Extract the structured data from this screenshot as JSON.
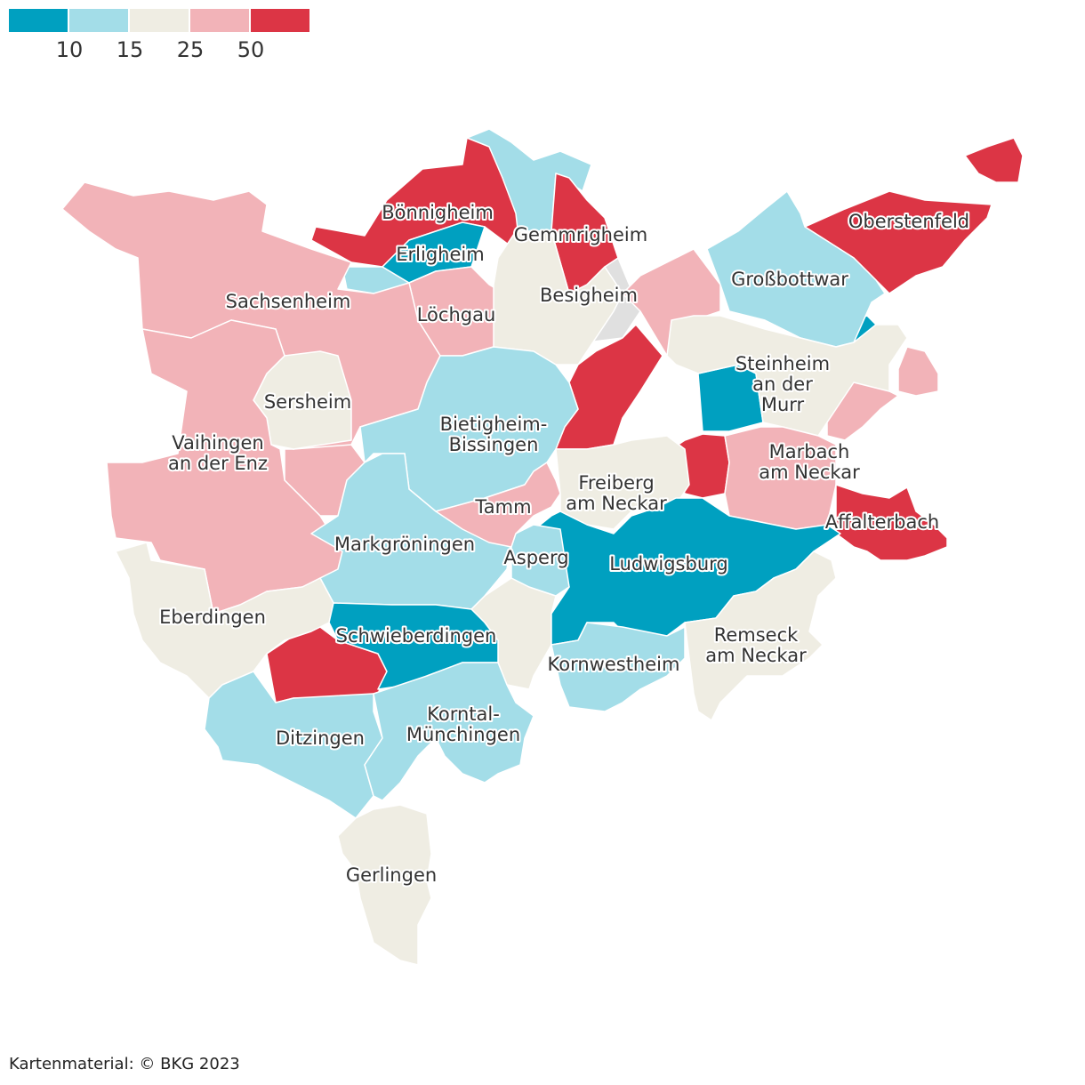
{
  "legend": {
    "colors": [
      "#00a0c0",
      "#a3dde8",
      "#efede3",
      "#f2b3b8",
      "#dc3545"
    ],
    "ticks": [
      10,
      15,
      25,
      50
    ]
  },
  "regions": [
    {
      "name": [
        "Bönnigheim"
      ],
      "color": "#dc3545"
    },
    {
      "name": [
        "Erligheim"
      ],
      "color": "#00a0c0"
    },
    {
      "name": [
        "Gemmrigheim"
      ],
      "color": "#dc3545"
    },
    {
      "name": [
        "Oberstenfeld"
      ],
      "color": "#dc3545"
    },
    {
      "name": [
        "Großbottwar"
      ],
      "color": "#a3dde8"
    },
    {
      "name": [
        "Löchgau"
      ],
      "color": "#f2b3b8"
    },
    {
      "name": [
        "Besigheim"
      ],
      "color": "#efede3"
    },
    {
      "name": [
        "Sachsenheim"
      ],
      "color": "#f2b3b8"
    },
    {
      "name": [
        "Sersheim"
      ],
      "color": "#efede3"
    },
    {
      "name": [
        "Vaihingen",
        "an der Enz"
      ],
      "color": "#f2b3b8"
    },
    {
      "name": [
        "Bietigheim-",
        "Bissingen"
      ],
      "color": "#a3dde8"
    },
    {
      "name": [
        "Markgröningen"
      ],
      "color": "#a3dde8"
    },
    {
      "name": [
        "Tamm"
      ],
      "color": "#f2b3b8"
    },
    {
      "name": [
        "Freiberg",
        "am Neckar"
      ],
      "color": "#efede3"
    },
    {
      "name": [
        "Steinheim",
        "an der",
        "Murr"
      ],
      "color": "#efede3"
    },
    {
      "name": [
        "Marbach",
        "am Neckar"
      ],
      "color": "#f2b3b8"
    },
    {
      "name": [
        "Affalterbach"
      ],
      "color": "#dc3545"
    },
    {
      "name": [
        "Ludwigsburg"
      ],
      "color": "#00a0c0"
    },
    {
      "name": [
        "Asperg"
      ],
      "color": "#a3dde8"
    },
    {
      "name": [
        "Kornwestheim"
      ],
      "color": "#a3dde8"
    },
    {
      "name": [
        "Remseck",
        "am Neckar"
      ],
      "color": "#efede3"
    },
    {
      "name": [
        "Eberdingen"
      ],
      "color": "#efede3"
    },
    {
      "name": [
        "Schwieberdingen"
      ],
      "color": "#00a0c0"
    },
    {
      "name": [
        "Ditzingen"
      ],
      "color": "#a3dde8"
    },
    {
      "name": [
        "Korntal-",
        "Münchingen"
      ],
      "color": "#a3dde8"
    },
    {
      "name": [
        "Gerlingen"
      ],
      "color": "#efede3"
    }
  ],
  "credit": "Kartenmaterial: © BKG 2023"
}
